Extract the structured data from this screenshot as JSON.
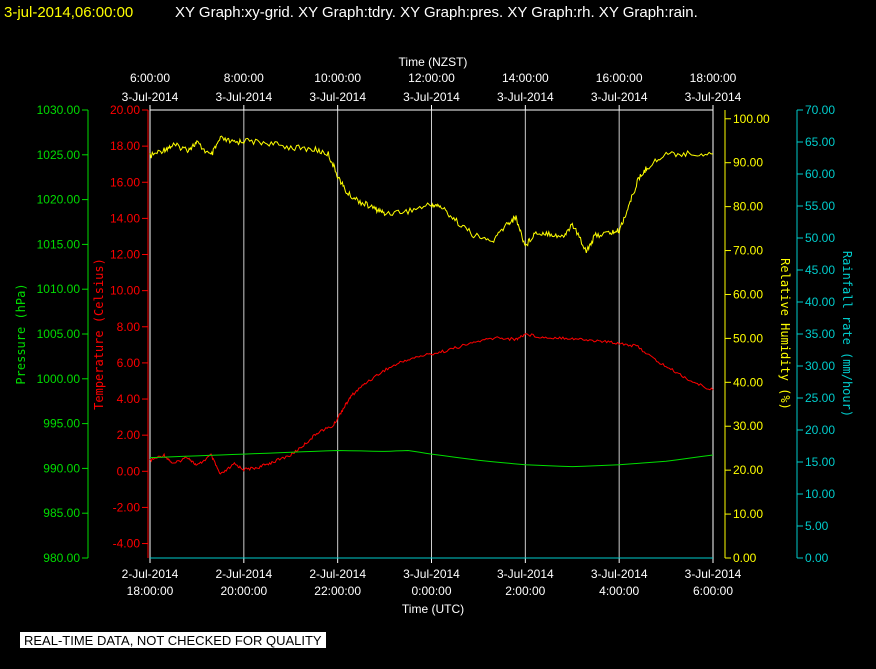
{
  "header": {
    "timestamp": "3-jul-2014,06:00:00",
    "graphs": "XY Graph:xy-grid.  XY Graph:tdry.  XY Graph:pres.  XY Graph:rh.  XY Graph:rain."
  },
  "disclaimer": "REAL-TIME DATA, NOT CHECKED FOR QUALITY",
  "colors": {
    "background": "#000000",
    "grid": "#ffffff",
    "pressure": "#00dd00",
    "temperature": "#ff0000",
    "humidity": "#ffff00",
    "rain": "#00cccc",
    "header": "#ffff00"
  },
  "chart_data": {
    "type": "line",
    "title": "",
    "top_axis": {
      "label": "Time (NZST)",
      "ticks": [
        {
          "x": 0,
          "time": "6:00:00",
          "date": "3-Jul-2014"
        },
        {
          "x": 2,
          "time": "8:00:00",
          "date": "3-Jul-2014"
        },
        {
          "x": 4,
          "time": "10:00:00",
          "date": "3-Jul-2014"
        },
        {
          "x": 6,
          "time": "12:00:00",
          "date": "3-Jul-2014"
        },
        {
          "x": 8,
          "time": "14:00:00",
          "date": "3-Jul-2014"
        },
        {
          "x": 10,
          "time": "16:00:00",
          "date": "3-Jul-2014"
        },
        {
          "x": 12,
          "time": "18:00:00",
          "date": "3-Jul-2014"
        }
      ]
    },
    "bottom_axis": {
      "label": "Time (UTC)",
      "ticks": [
        {
          "x": 0,
          "date": "2-Jul-2014",
          "time": "18:00:00"
        },
        {
          "x": 2,
          "date": "2-Jul-2014",
          "time": "20:00:00"
        },
        {
          "x": 4,
          "date": "2-Jul-2014",
          "time": "22:00:00"
        },
        {
          "x": 6,
          "date": "3-Jul-2014",
          "time": "0:00:00"
        },
        {
          "x": 8,
          "date": "3-Jul-2014",
          "time": "2:00:00"
        },
        {
          "x": 10,
          "date": "3-Jul-2014",
          "time": "4:00:00"
        },
        {
          "x": 12,
          "date": "3-Jul-2014",
          "time": "6:00:00"
        }
      ]
    },
    "grid": true,
    "axes": {
      "pressure": {
        "label": "Pressure (hPa)",
        "range": [
          980,
          1030
        ],
        "ticks": [
          "980.00",
          "985.00",
          "990.00",
          "995.00",
          "1000.00",
          "1005.00",
          "1010.00",
          "1015.00",
          "1020.00",
          "1025.00",
          "1030.00"
        ]
      },
      "temperature": {
        "label": "Temperature (Celsius)",
        "range": [
          -4.8,
          20
        ],
        "ticks": [
          "-4.00",
          "-2.00",
          "0.00",
          "2.00",
          "4.00",
          "6.00",
          "8.00",
          "10.00",
          "12.00",
          "14.00",
          "16.00",
          "18.00",
          "20.00"
        ]
      },
      "humidity": {
        "label": "Relative Humidity (%)",
        "range": [
          0,
          102
        ],
        "ticks": [
          "0.00",
          "10.00",
          "20.00",
          "30.00",
          "40.00",
          "50.00",
          "60.00",
          "70.00",
          "80.00",
          "90.00",
          "100.00"
        ]
      },
      "rain": {
        "label": "Rainfall rate (mm/hour)",
        "range": [
          0,
          70
        ],
        "ticks": [
          "0.00",
          "5.00",
          "10.00",
          "15.00",
          "20.00",
          "25.00",
          "30.00",
          "35.00",
          "40.00",
          "45.00",
          "50.00",
          "55.00",
          "60.00",
          "65.00",
          "70.00"
        ]
      }
    },
    "x_range_hours": [
      0,
      12
    ],
    "series": [
      {
        "name": "Temperature",
        "axis": "temperature",
        "color": "#ff0000",
        "x": [
          0,
          0.3,
          0.5,
          0.8,
          1,
          1.3,
          1.5,
          1.8,
          2,
          2.3,
          2.6,
          3,
          3.3,
          3.6,
          3.9,
          4.1,
          4.3,
          4.6,
          5,
          5.4,
          5.8,
          6.2,
          6.6,
          7,
          7.4,
          7.8,
          8,
          8.4,
          8.8,
          9.2,
          9.6,
          10,
          10.4,
          10.8,
          11.2,
          11.6,
          12
        ],
        "y": [
          0.6,
          0.9,
          0.4,
          0.8,
          0.3,
          0.9,
          -0.2,
          0.4,
          0.1,
          0.2,
          0.5,
          0.9,
          1.5,
          2.2,
          2.5,
          3.4,
          4.2,
          4.9,
          5.6,
          6.1,
          6.4,
          6.6,
          6.9,
          7.2,
          7.4,
          7.3,
          7.6,
          7.4,
          7.4,
          7.3,
          7.2,
          7.1,
          6.9,
          6.1,
          5.5,
          4.9,
          4.5
        ]
      },
      {
        "name": "Pressure",
        "axis": "pressure",
        "color": "#00dd00",
        "x": [
          0,
          1,
          2,
          3,
          4,
          5,
          5.5,
          6,
          7,
          8,
          9,
          10,
          11,
          12
        ],
        "y": [
          991.2,
          991.4,
          991.6,
          991.8,
          992.0,
          991.9,
          992.0,
          991.6,
          990.9,
          990.4,
          990.2,
          990.4,
          990.8,
          991.5
        ]
      },
      {
        "name": "Relative Humidity",
        "axis": "humidity",
        "color": "#ffff00",
        "x": [
          0,
          0.3,
          0.5,
          0.8,
          1,
          1.3,
          1.5,
          1.8,
          2,
          2.5,
          3,
          3.5,
          3.8,
          4,
          4.2,
          4.5,
          4.8,
          5,
          5.5,
          6,
          6.2,
          6.5,
          6.9,
          7.3,
          7.6,
          7.8,
          8,
          8.2,
          8.5,
          8.8,
          9,
          9.3,
          9.5,
          9.8,
          10,
          10.2,
          10.4,
          10.6,
          11,
          11.5,
          12
        ],
        "y": [
          91.5,
          93.0,
          94.0,
          93.0,
          94.5,
          91.5,
          95.5,
          94.5,
          95.0,
          94.5,
          93.5,
          93.0,
          92.0,
          87.0,
          83.0,
          81.0,
          79.5,
          78.5,
          79.0,
          80.5,
          80.0,
          77.0,
          73.5,
          72.0,
          76.0,
          77.5,
          71.0,
          74.0,
          74.0,
          73.0,
          76.0,
          70.0,
          73.5,
          74.0,
          74.5,
          80.0,
          86.0,
          89.0,
          92.0,
          92.0,
          92.0
        ]
      },
      {
        "name": "Rainfall rate",
        "axis": "rain",
        "color": "#00cccc",
        "x": [
          0,
          12
        ],
        "y": [
          0.0,
          0.0
        ]
      }
    ]
  }
}
